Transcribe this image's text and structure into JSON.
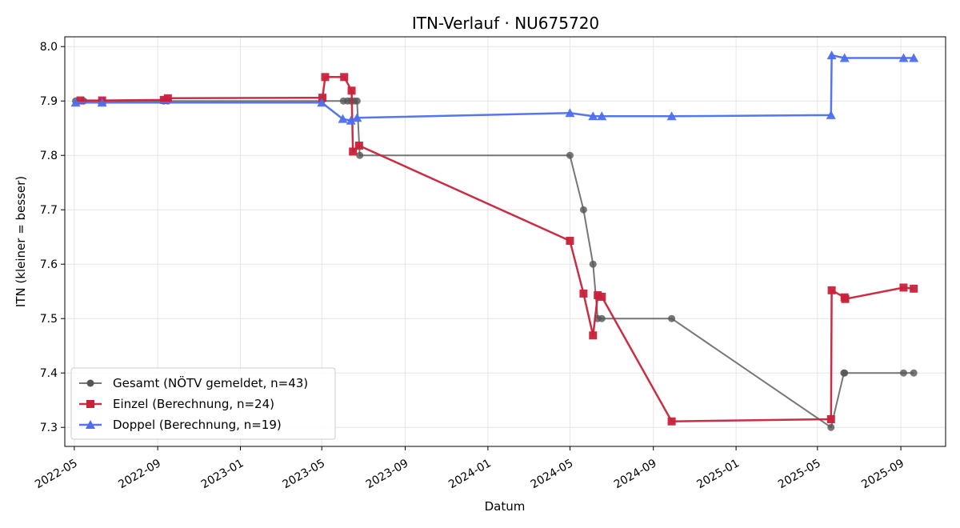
{
  "chart_data": {
    "type": "line",
    "title": "ITN-Verlauf · NU675720",
    "xlabel": "Datum",
    "ylabel": "ITN  (kleiner = besser)",
    "ylim": [
      7.265,
      8.018
    ],
    "xlim": [
      "2022-04-17",
      "2025-11-06"
    ],
    "x_ticks": [
      "2022-05",
      "2022-09",
      "2023-01",
      "2023-05",
      "2023-09",
      "2024-01",
      "2024-05",
      "2024-09",
      "2025-01",
      "2025-05",
      "2025-09"
    ],
    "y_ticks": [
      "7.3",
      "7.4",
      "7.5",
      "7.6",
      "7.7",
      "7.8",
      "7.9",
      "8.0"
    ],
    "grid": true,
    "legend_position": "lower-left",
    "series": [
      {
        "name": "Gesamt (NÖTV gemeldet, n=43)",
        "color": "#555555",
        "marker": "circle",
        "points": [
          {
            "x": "2022-05-03",
            "y": 7.9
          },
          {
            "x": "2022-05-15",
            "y": 7.9
          },
          {
            "x": "2022-06-11",
            "y": 7.9
          },
          {
            "x": "2022-09-10",
            "y": 7.9
          },
          {
            "x": "2022-09-16",
            "y": 7.9
          },
          {
            "x": "2023-05-01",
            "y": 7.9
          },
          {
            "x": "2023-06-02",
            "y": 7.9
          },
          {
            "x": "2023-06-08",
            "y": 7.9
          },
          {
            "x": "2023-06-13",
            "y": 7.9
          },
          {
            "x": "2023-06-18",
            "y": 7.9
          },
          {
            "x": "2023-06-22",
            "y": 7.9
          },
          {
            "x": "2023-06-26",
            "y": 7.8
          },
          {
            "x": "2024-05-01",
            "y": 7.8
          },
          {
            "x": "2024-05-21",
            "y": 7.7
          },
          {
            "x": "2024-06-04",
            "y": 7.6
          },
          {
            "x": "2024-06-11",
            "y": 7.5
          },
          {
            "x": "2024-06-17",
            "y": 7.5
          },
          {
            "x": "2024-09-28",
            "y": 7.5
          },
          {
            "x": "2025-05-21",
            "y": 7.3
          },
          {
            "x": "2025-06-09",
            "y": 7.4
          },
          {
            "x": "2025-06-10",
            "y": 7.4
          },
          {
            "x": "2025-09-05",
            "y": 7.4
          },
          {
            "x": "2025-09-20",
            "y": 7.4
          }
        ]
      },
      {
        "name": "Einzel (Berechnung, n=24)",
        "color": "#c8223a",
        "marker": "square",
        "points": [
          {
            "x": "2022-05-10",
            "y": 7.901
          },
          {
            "x": "2022-06-11",
            "y": 7.901
          },
          {
            "x": "2022-09-10",
            "y": 7.902
          },
          {
            "x": "2022-09-16",
            "y": 7.905
          },
          {
            "x": "2023-05-02",
            "y": 7.906
          },
          {
            "x": "2023-05-06",
            "y": 7.944
          },
          {
            "x": "2023-06-03",
            "y": 7.944
          },
          {
            "x": "2023-06-14",
            "y": 7.919
          },
          {
            "x": "2023-06-16",
            "y": 7.807
          },
          {
            "x": "2023-06-25",
            "y": 7.818
          },
          {
            "x": "2024-05-01",
            "y": 7.643
          },
          {
            "x": "2024-05-21",
            "y": 7.546
          },
          {
            "x": "2024-06-04",
            "y": 7.469
          },
          {
            "x": "2024-06-11",
            "y": 7.543
          },
          {
            "x": "2024-06-17",
            "y": 7.54
          },
          {
            "x": "2024-09-28",
            "y": 7.311
          },
          {
            "x": "2025-05-21",
            "y": 7.315
          },
          {
            "x": "2025-05-22",
            "y": 7.552
          },
          {
            "x": "2025-06-10",
            "y": 7.539
          },
          {
            "x": "2025-06-11",
            "y": 7.536
          },
          {
            "x": "2025-09-05",
            "y": 7.557
          },
          {
            "x": "2025-09-20",
            "y": 7.555
          }
        ]
      },
      {
        "name": "Doppel (Berechnung, n=19)",
        "color": "#4d6ef0",
        "marker": "triangle",
        "points": [
          {
            "x": "2022-05-03",
            "y": 7.897
          },
          {
            "x": "2022-06-11",
            "y": 7.897
          },
          {
            "x": "2023-05-01",
            "y": 7.897
          },
          {
            "x": "2023-06-01",
            "y": 7.867
          },
          {
            "x": "2023-06-13",
            "y": 7.864
          },
          {
            "x": "2023-06-22",
            "y": 7.869
          },
          {
            "x": "2024-05-01",
            "y": 7.878
          },
          {
            "x": "2024-06-04",
            "y": 7.872
          },
          {
            "x": "2024-06-17",
            "y": 7.872
          },
          {
            "x": "2024-09-28",
            "y": 7.872
          },
          {
            "x": "2025-05-21",
            "y": 7.874
          },
          {
            "x": "2025-05-22",
            "y": 7.984
          },
          {
            "x": "2025-06-10",
            "y": 7.979
          },
          {
            "x": "2025-09-05",
            "y": 7.979
          },
          {
            "x": "2025-09-20",
            "y": 7.979
          }
        ]
      }
    ]
  }
}
